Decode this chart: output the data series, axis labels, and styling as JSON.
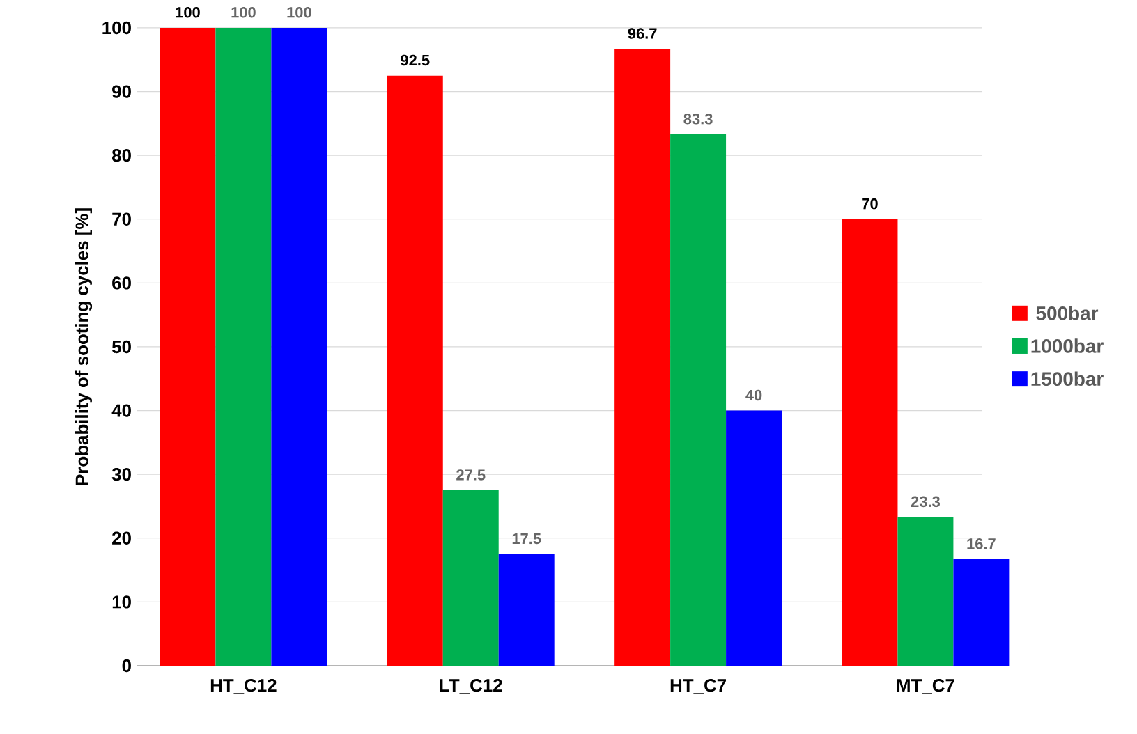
{
  "chart_data": {
    "type": "bar",
    "ylabel": "Probability of sooting cycles [%]",
    "categories": [
      "HT_C12",
      "LT_C12",
      "HT_C7",
      "MT_C7"
    ],
    "series": [
      {
        "name": "500bar",
        "color": "#ff0000",
        "values": [
          100,
          92.5,
          96.7,
          70
        ]
      },
      {
        "name": "1000bar",
        "color": "#00b050",
        "values": [
          100,
          27.5,
          83.3,
          23.3
        ]
      },
      {
        "name": "1500bar",
        "color": "#0000ff",
        "values": [
          100,
          17.5,
          40,
          16.7
        ]
      }
    ],
    "ylim": [
      0,
      100
    ],
    "yticks": [
      0,
      10,
      20,
      30,
      40,
      50,
      60,
      70,
      80,
      90,
      100
    ],
    "grid": "y",
    "legend": "right",
    "data_labels": true
  }
}
